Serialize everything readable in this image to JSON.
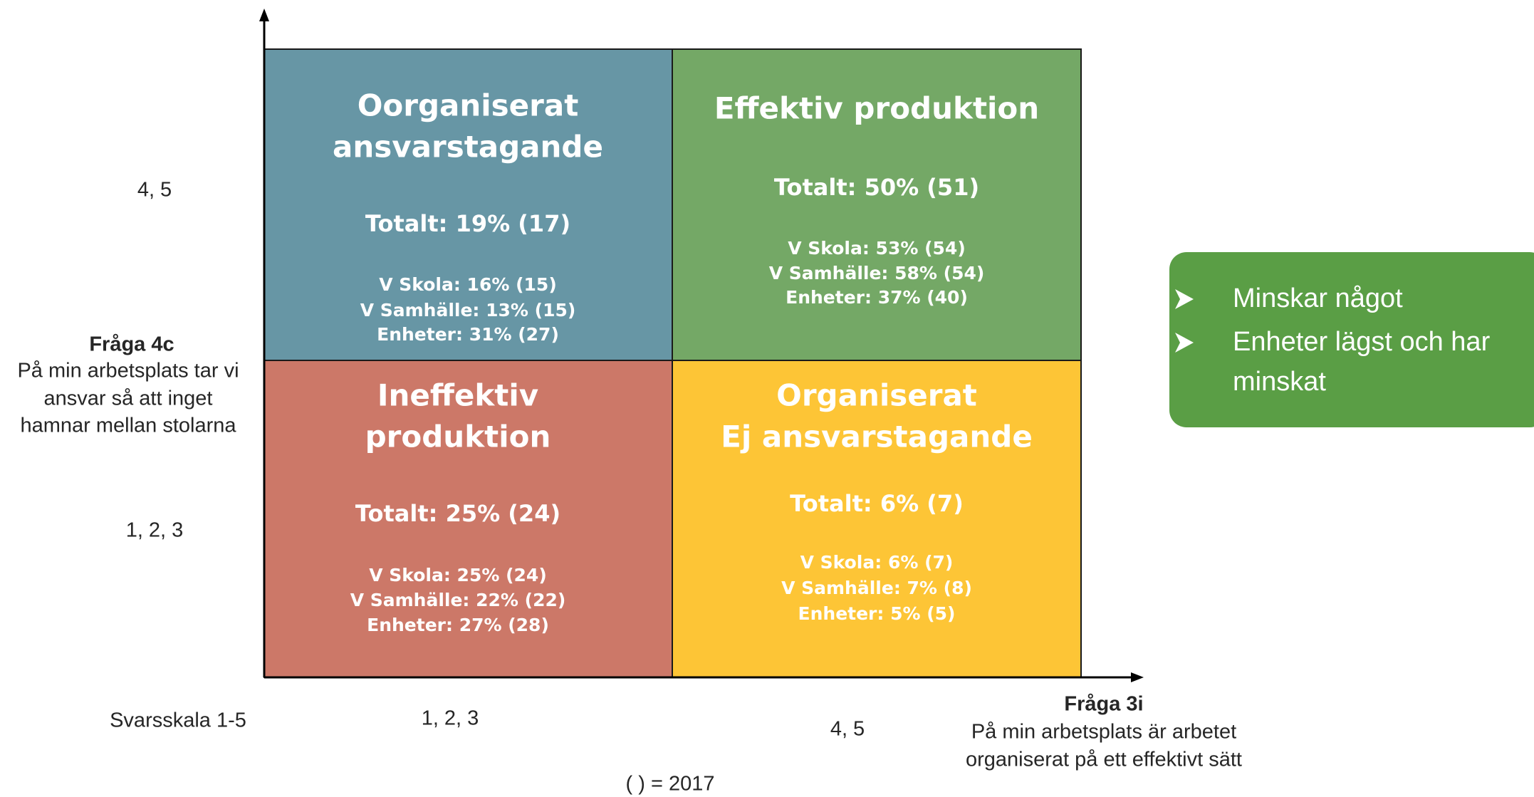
{
  "y_axis": {
    "title": "Fråga 4c",
    "description": [
      "På min arbetsplats tar vi",
      "ansvar så att inget",
      "hamnar mellan stolarna"
    ],
    "high": "4, 5",
    "low": "1, 2, 3"
  },
  "x_axis": {
    "title": "Fråga 3i",
    "description": [
      "På min arbetsplats är arbetet",
      "organiserat på ett effektivt sätt"
    ],
    "scale": "Svarsskala 1-5",
    "low": "1, 2, 3",
    "high": "4, 5"
  },
  "quadrants": [
    {
      "title": [
        "Oorganiserat",
        "ansvarstagande"
      ],
      "total": "Totalt: 19% (17)",
      "details": [
        "V Skola: 16% (15)",
        "V Samhälle: 13% (15)",
        "Enheter: 31% (27)"
      ]
    },
    {
      "title": [
        "Effektiv produktion"
      ],
      "total": "Totalt: 50% (51)",
      "details": [
        "V Skola: 53% (54)",
        "V Samhälle: 58% (54)",
        "Enheter: 37% (40)"
      ]
    },
    {
      "title": [
        "Ineffektiv",
        "produktion"
      ],
      "total": "Totalt: 25% (24)",
      "details": [
        "V Skola: 25% (24)",
        "V Samhälle: 22% (22)",
        "Enheter: 27% (28)"
      ]
    },
    {
      "title": [
        "Organiserat",
        "Ej ansvarstagande"
      ],
      "total": "Totalt: 6% (7)",
      "details": [
        "V Skola: 6% (7)",
        "V Samhälle: 7% (8)",
        "Enheter: 5% (5)"
      ]
    }
  ],
  "note": "( ) = 2017",
  "callout": {
    "bullets": [
      [
        "Minskar något"
      ],
      [
        "Enheter lägst och har",
        "minskat"
      ]
    ]
  }
}
